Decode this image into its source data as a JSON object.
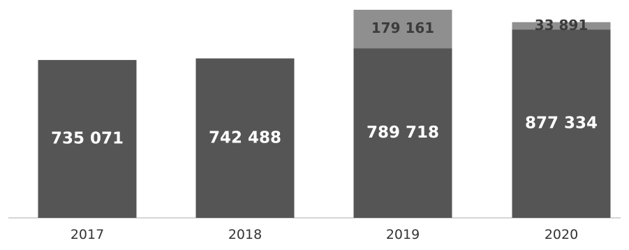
{
  "chart_data": {
    "type": "bar",
    "stacked": true,
    "categories": [
      "2017",
      "2018",
      "2019",
      "2020"
    ],
    "series": [
      {
        "values": [
          735071,
          742488,
          789718,
          877334
        ],
        "labels": [
          "735 071",
          "742 488",
          "789 718",
          "877 334"
        ],
        "color": "#555555"
      },
      {
        "values": [
          0,
          0,
          179161,
          33891
        ],
        "labels": [
          "",
          "",
          "179 161",
          "33 891"
        ],
        "color": "#8f8f8f"
      }
    ],
    "title": "",
    "xlabel": "",
    "ylabel": "",
    "ylim": [
      0,
      968879
    ],
    "grid": false,
    "legend": "none"
  }
}
